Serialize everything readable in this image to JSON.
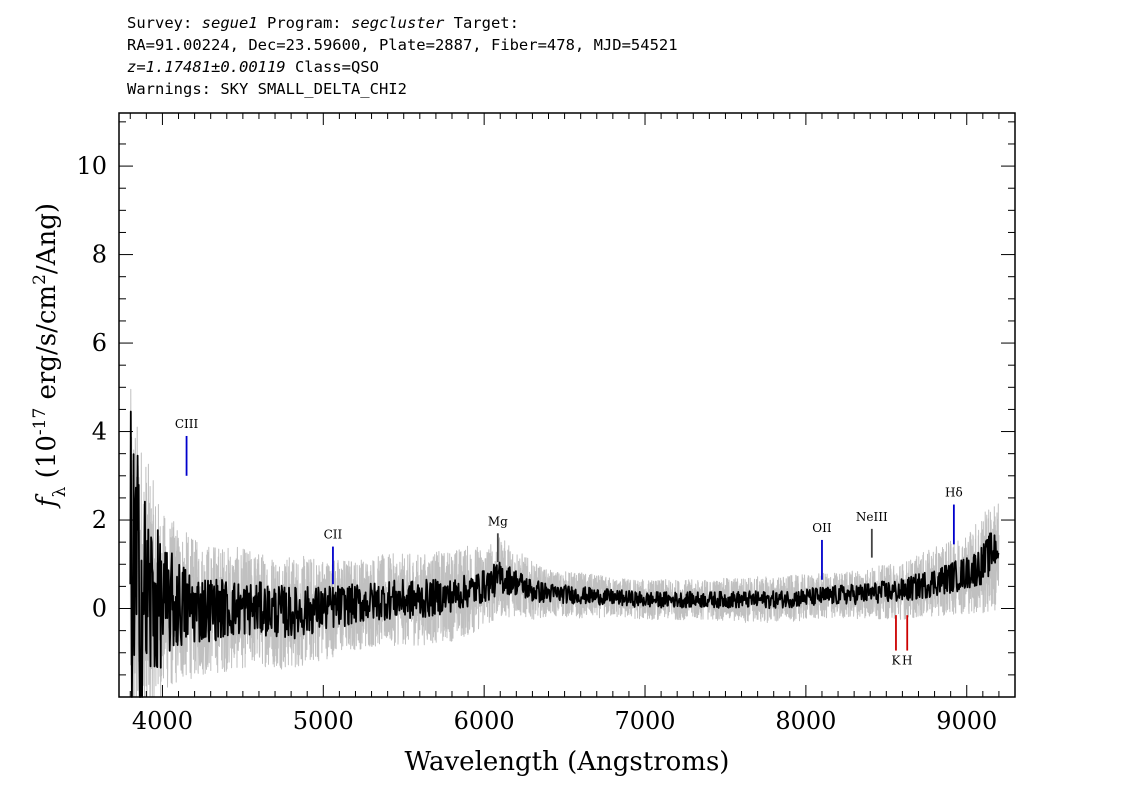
{
  "header": {
    "line1": {
      "survey_label": "Survey: ",
      "survey": "segue1",
      "program_label": " Program: ",
      "program": "segcluster",
      "target_label": " Target:"
    },
    "line2": "RA=91.00224, Dec=23.59600, Plate=2887, Fiber=478, MJD=54521",
    "line3": {
      "z": "z=1.17481±0.00119",
      "cls": " Class=QSO"
    },
    "line4": "Warnings: SKY SMALL_DELTA_CHI2"
  },
  "chart_data": {
    "type": "line",
    "xlabel": "Wavelength (Angstroms)",
    "ylabel": "f_λ (10^-17 erg/s/cm^2/Ang)",
    "xlim": [
      3730,
      9300
    ],
    "ylim": [
      -2.0,
      11.2
    ],
    "xticks": [
      4000,
      5000,
      6000,
      7000,
      8000,
      9000
    ],
    "xtick_labels": [
      "4000",
      "5000",
      "6000",
      "7000",
      "8000",
      "9000"
    ],
    "yticks": [
      0,
      2,
      4,
      6,
      8,
      10
    ],
    "ytick_labels": [
      "0",
      "2",
      "4",
      "6",
      "8",
      "10"
    ],
    "grid": false,
    "series": [
      {
        "role": "flux",
        "color": "#c0c0c0",
        "x": [
          3800,
          3850,
          3900,
          4000,
          4100,
          4200,
          4400,
          4600,
          4800,
          5000,
          5200,
          5400,
          5600,
          5800,
          5900,
          6000,
          6100,
          6200,
          6300,
          6400,
          6600,
          6800,
          7000,
          7200,
          7400,
          7600,
          7800,
          8000,
          8200,
          8400,
          8600,
          8800,
          9000,
          9100,
          9200
        ],
        "y": [
          0.5,
          0.3,
          0.2,
          0.1,
          0.1,
          0.0,
          0.0,
          0.0,
          -0.1,
          0.0,
          0.1,
          0.2,
          0.2,
          0.3,
          0.4,
          0.5,
          0.7,
          0.6,
          0.4,
          0.35,
          0.3,
          0.25,
          0.2,
          0.2,
          0.2,
          0.2,
          0.2,
          0.25,
          0.3,
          0.35,
          0.4,
          0.6,
          0.8,
          1.0,
          1.2
        ],
        "noise": [
          3.5,
          3.0,
          2.5,
          1.6,
          1.4,
          1.2,
          1.1,
          1.0,
          1.0,
          0.9,
          0.8,
          0.8,
          0.8,
          0.8,
          0.8,
          0.7,
          0.7,
          0.6,
          0.5,
          0.4,
          0.4,
          0.35,
          0.35,
          0.35,
          0.35,
          0.4,
          0.4,
          0.4,
          0.4,
          0.45,
          0.5,
          0.6,
          0.7,
          0.9,
          1.0
        ]
      },
      {
        "role": "smoothed",
        "color": "#000000",
        "x": [
          3800,
          3850,
          3900,
          4000,
          4100,
          4200,
          4400,
          4600,
          4800,
          5000,
          5200,
          5400,
          5600,
          5800,
          5900,
          6000,
          6100,
          6200,
          6300,
          6400,
          6600,
          6800,
          7000,
          7200,
          7400,
          7600,
          7800,
          8000,
          8200,
          8400,
          8600,
          8800,
          9000,
          9100,
          9200
        ],
        "y": [
          0.5,
          0.3,
          0.2,
          0.1,
          0.1,
          0.0,
          0.0,
          0.0,
          -0.1,
          0.0,
          0.1,
          0.2,
          0.2,
          0.3,
          0.4,
          0.5,
          0.7,
          0.6,
          0.4,
          0.35,
          0.3,
          0.25,
          0.2,
          0.2,
          0.2,
          0.2,
          0.2,
          0.25,
          0.3,
          0.35,
          0.4,
          0.6,
          0.8,
          1.0,
          1.5
        ],
        "noise": [
          2.8,
          2.2,
          1.6,
          0.9,
          0.7,
          0.55,
          0.45,
          0.4,
          0.4,
          0.35,
          0.3,
          0.3,
          0.3,
          0.25,
          0.25,
          0.25,
          0.25,
          0.2,
          0.18,
          0.15,
          0.13,
          0.12,
          0.12,
          0.12,
          0.12,
          0.13,
          0.13,
          0.14,
          0.15,
          0.16,
          0.18,
          0.22,
          0.25,
          0.3,
          0.35
        ]
      }
    ],
    "lines": [
      {
        "label": "CIII",
        "x": 4150,
        "y_low": 3.0,
        "y_high": 3.9,
        "color": "#0000cc",
        "label_pos": "above"
      },
      {
        "label": "CII",
        "x": 5060,
        "y_low": 0.55,
        "y_high": 1.4,
        "color": "#0000cc",
        "label_pos": "above"
      },
      {
        "label": "Mg",
        "x": 6085,
        "y_low": 1.05,
        "y_high": 1.7,
        "color": "#444444",
        "label_pos": "above"
      },
      {
        "label": "OII",
        "x": 8100,
        "y_low": 0.65,
        "y_high": 1.55,
        "color": "#0000cc",
        "label_pos": "above"
      },
      {
        "label": "NeIII",
        "x": 8410,
        "y_low": 1.15,
        "y_high": 1.8,
        "color": "#444444",
        "label_pos": "above"
      },
      {
        "label": "Hδ",
        "x": 8920,
        "y_low": 1.45,
        "y_high": 2.35,
        "color": "#0000cc",
        "label_pos": "above"
      },
      {
        "label": "K",
        "x": 8560,
        "y_low": -0.95,
        "y_high": -0.15,
        "color": "#cc0000",
        "label_pos": "below"
      },
      {
        "label": "H",
        "x": 8630,
        "y_low": -0.95,
        "y_high": -0.15,
        "color": "#cc0000",
        "label_pos": "below"
      }
    ]
  }
}
